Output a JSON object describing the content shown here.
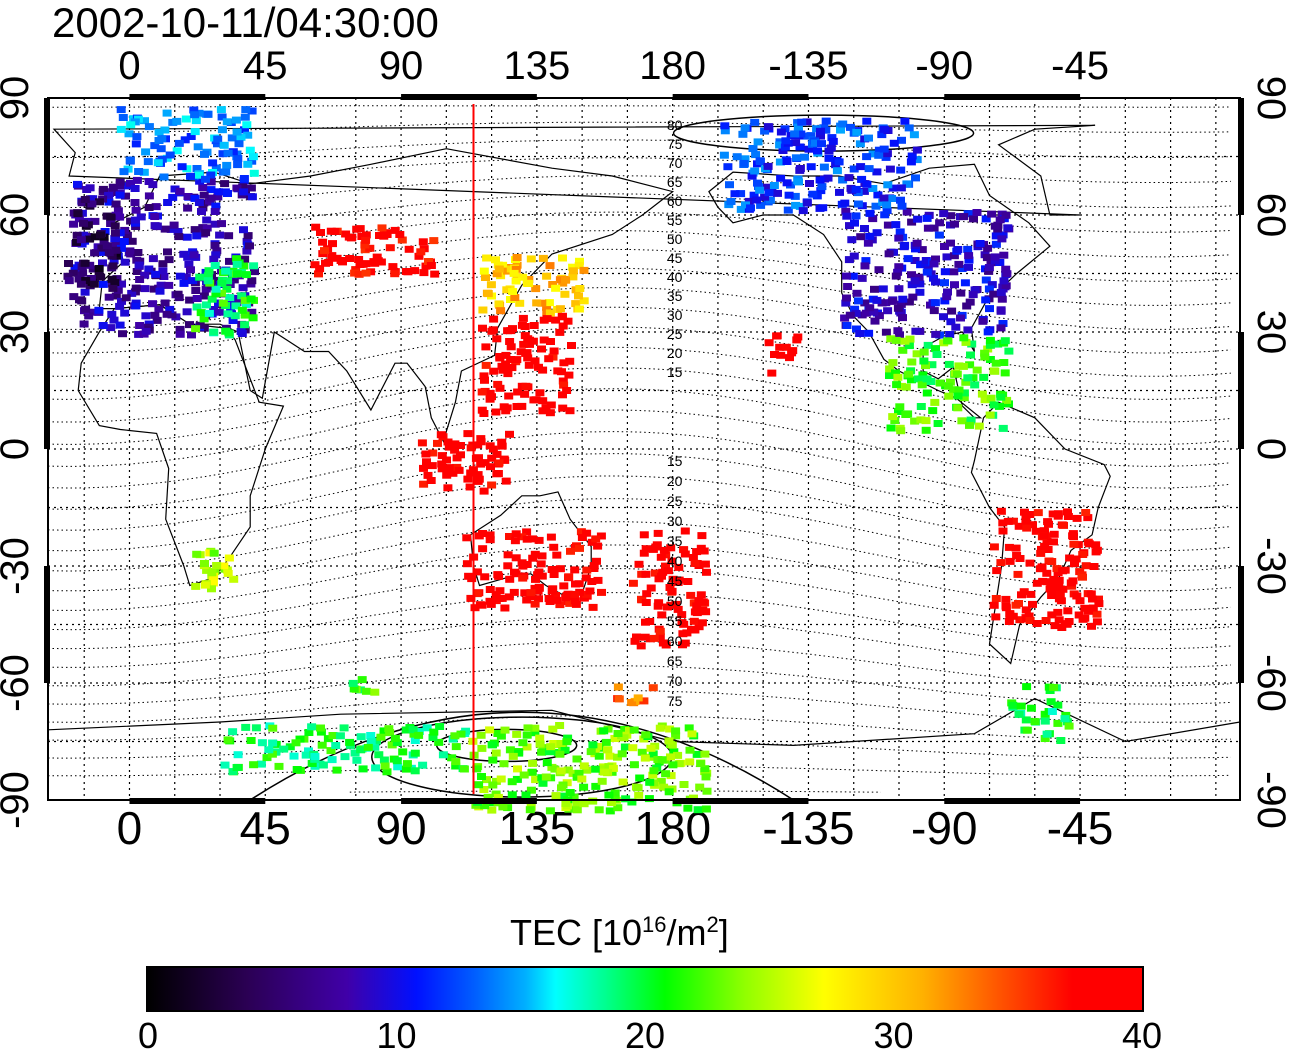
{
  "timestamp": "2002-10-11/04:30:00",
  "map": {
    "lon_ticks_top": [
      "0",
      "45",
      "90",
      "135",
      "180",
      "-135",
      "-90",
      "-45"
    ],
    "lon_ticks_bottom": [
      "0",
      "45",
      "90",
      "135",
      "180",
      "-135",
      "-90",
      "-45"
    ],
    "lat_ticks_left": [
      "90",
      "60",
      "30",
      "0",
      "-30",
      "-60",
      "-90"
    ],
    "lat_ticks_right": [
      "90",
      "60",
      "30",
      "0",
      "-30",
      "-60",
      "-90"
    ],
    "lon_tick_values": [
      0,
      45,
      90,
      135,
      180,
      225,
      270,
      315
    ],
    "lat_tick_values": [
      90,
      60,
      30,
      0,
      -30,
      -60,
      -90
    ],
    "lon_range": [
      -27,
      368
    ],
    "lat_range": [
      -90,
      90
    ],
    "grid": true,
    "marker_longitude": 114,
    "marker_color": "#ff0000",
    "contour_labels_north": [
      "80",
      "75",
      "70",
      "65",
      "60",
      "55",
      "50",
      "45",
      "40",
      "35",
      "30",
      "25",
      "20",
      "15"
    ],
    "contour_labels_south": [
      "15",
      "20",
      "25",
      "30",
      "35",
      "40",
      "45",
      "50",
      "55",
      "60",
      "65",
      "70",
      "75"
    ]
  },
  "colorbar": {
    "title": "TEC  [10",
    "title_sup1": "16",
    "title_mid": "/m",
    "title_sup2": "2",
    "title_end": "]",
    "ticks": [
      "0",
      "10",
      "20",
      "30",
      "40"
    ],
    "range": [
      0,
      40
    ]
  },
  "tec_regions": [
    {
      "lon": [
        -20,
        40
      ],
      "lat": [
        30,
        70
      ],
      "tec": 8
    },
    {
      "lon": [
        -22,
        -5
      ],
      "lat": [
        42,
        65
      ],
      "tec": 4
    },
    {
      "lon": [
        20,
        40
      ],
      "lat": [
        30,
        50
      ],
      "tec": 20
    },
    {
      "lon": [
        -5,
        40
      ],
      "lat": [
        70,
        88
      ],
      "tec": 14
    },
    {
      "lon": [
        60,
        100
      ],
      "lat": [
        45,
        58
      ],
      "tec": 38
    },
    {
      "lon": [
        115,
        150
      ],
      "lat": [
        35,
        50
      ],
      "tec": 30
    },
    {
      "lon": [
        115,
        145
      ],
      "lat": [
        10,
        35
      ],
      "tec": 39
    },
    {
      "lon": [
        95,
        125
      ],
      "lat": [
        -10,
        5
      ],
      "tec": 39
    },
    {
      "lon": [
        110,
        155
      ],
      "lat": [
        -40,
        -20
      ],
      "tec": 39
    },
    {
      "lon": [
        165,
        190
      ],
      "lat": [
        -50,
        -20
      ],
      "tec": 39
    },
    {
      "lon": [
        20,
        35
      ],
      "lat": [
        -35,
        -25
      ],
      "tec": 25
    },
    {
      "lon": [
        210,
        220
      ],
      "lat": [
        20,
        30
      ],
      "tec": 39
    },
    {
      "lon": [
        235,
        290
      ],
      "lat": [
        30,
        62
      ],
      "tec": 9
    },
    {
      "lon": [
        195,
        260
      ],
      "lat": [
        62,
        85
      ],
      "tec": 12
    },
    {
      "lon": [
        250,
        290
      ],
      "lat": [
        5,
        30
      ],
      "tec": 22
    },
    {
      "lon": [
        285,
        320
      ],
      "lat": [
        -45,
        -15
      ],
      "tec": 39
    },
    {
      "lon": [
        290,
        310
      ],
      "lat": [
        -75,
        -60
      ],
      "tec": 20
    },
    {
      "lon": [
        30,
        110
      ],
      "lat": [
        -82,
        -70
      ],
      "tec": 20
    },
    {
      "lon": [
        110,
        190
      ],
      "lat": [
        -92,
        -70
      ],
      "tec": 23
    },
    {
      "lon": [
        70,
        80
      ],
      "lat": [
        -62,
        -58
      ],
      "tec": 22
    },
    {
      "lon": [
        160,
        175
      ],
      "lat": [
        -65,
        -60
      ],
      "tec": 34
    }
  ]
}
